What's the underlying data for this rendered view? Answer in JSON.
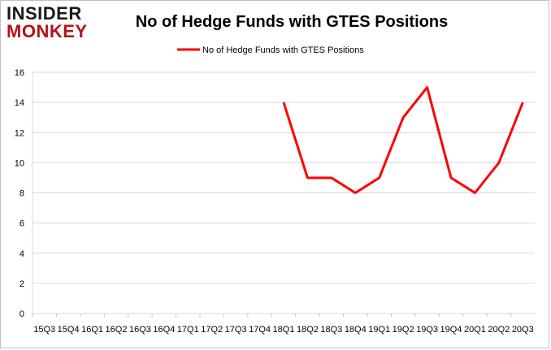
{
  "logo": {
    "line1": "INSIDER",
    "line2": "MONKEY"
  },
  "colors": {
    "series": "#ff0000",
    "grid": "#d9d9d9",
    "logo_red": "#b5121b"
  },
  "chart_data": {
    "type": "line",
    "title": "No of Hedge Funds with GTES Positions",
    "xlabel": "",
    "ylabel": "",
    "categories": [
      "15Q3",
      "15Q4",
      "16Q1",
      "16Q2",
      "16Q3",
      "16Q4",
      "17Q1",
      "17Q2",
      "17Q3",
      "17Q4",
      "18Q1",
      "18Q2",
      "18Q3",
      "18Q4",
      "19Q1",
      "19Q2",
      "19Q3",
      "19Q4",
      "20Q1",
      "20Q2",
      "20Q3"
    ],
    "series": [
      {
        "name": "No of Hedge Funds with GTES Positions",
        "values": [
          null,
          null,
          null,
          null,
          null,
          null,
          null,
          null,
          null,
          null,
          14,
          9,
          9,
          8,
          9,
          13,
          15,
          9,
          8,
          10,
          14
        ]
      }
    ],
    "ylim": [
      0,
      16
    ],
    "yticks": [
      0,
      2,
      4,
      6,
      8,
      10,
      12,
      14,
      16
    ],
    "grid": true,
    "legend": "top-center"
  }
}
